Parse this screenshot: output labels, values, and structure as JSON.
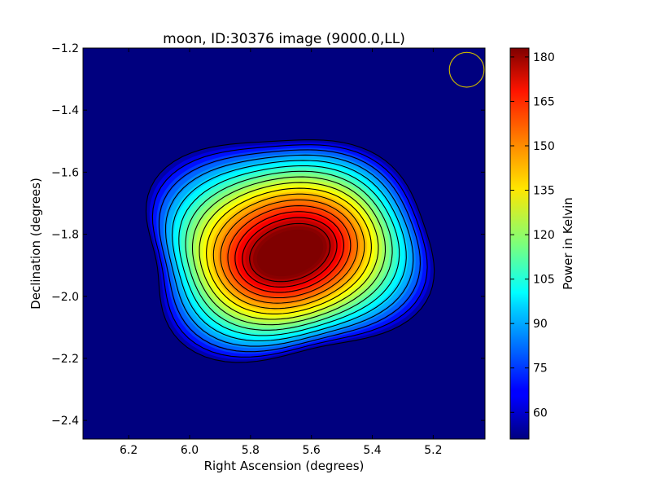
{
  "chart_data": {
    "type": "heatmap",
    "title": "moon, ID:30376 image (9000.0,LL)",
    "xlabel": "Right Ascension (degrees)",
    "ylabel": "Declination (degrees)",
    "colorbar_label": "Power in Kelvin",
    "xlim": [
      6.35,
      5.03
    ],
    "ylim": [
      -2.46,
      -1.2
    ],
    "x_ticks": [
      6.2,
      6.0,
      5.8,
      5.6,
      5.4,
      5.2
    ],
    "x_tick_labels": [
      "6.2",
      "6.0",
      "5.8",
      "5.6",
      "5.4",
      "5.2"
    ],
    "y_ticks": [
      -1.2,
      -1.4,
      -1.6,
      -1.8,
      -2.0,
      -2.2,
      -2.4
    ],
    "y_tick_labels": [
      "−1.2",
      "−1.4",
      "−1.6",
      "−1.8",
      "−2.0",
      "−2.2",
      "−2.4"
    ],
    "colorbar_range": [
      51,
      183
    ],
    "colorbar_ticks": [
      60,
      75,
      90,
      105,
      120,
      135,
      150,
      165,
      180
    ],
    "colorbar_tick_labels": [
      "60",
      "75",
      "90",
      "105",
      "120",
      "135",
      "150",
      "165",
      "180"
    ],
    "colormap": "jet",
    "contour_color": "#000000",
    "peak": {
      "ra": 5.67,
      "dec": -1.86,
      "value": 183
    },
    "background_value": 51,
    "beam_marker": {
      "ra": 5.09,
      "dec": -1.27,
      "radius_deg": 0.057,
      "color": "#c8b400"
    },
    "grid": false
  }
}
